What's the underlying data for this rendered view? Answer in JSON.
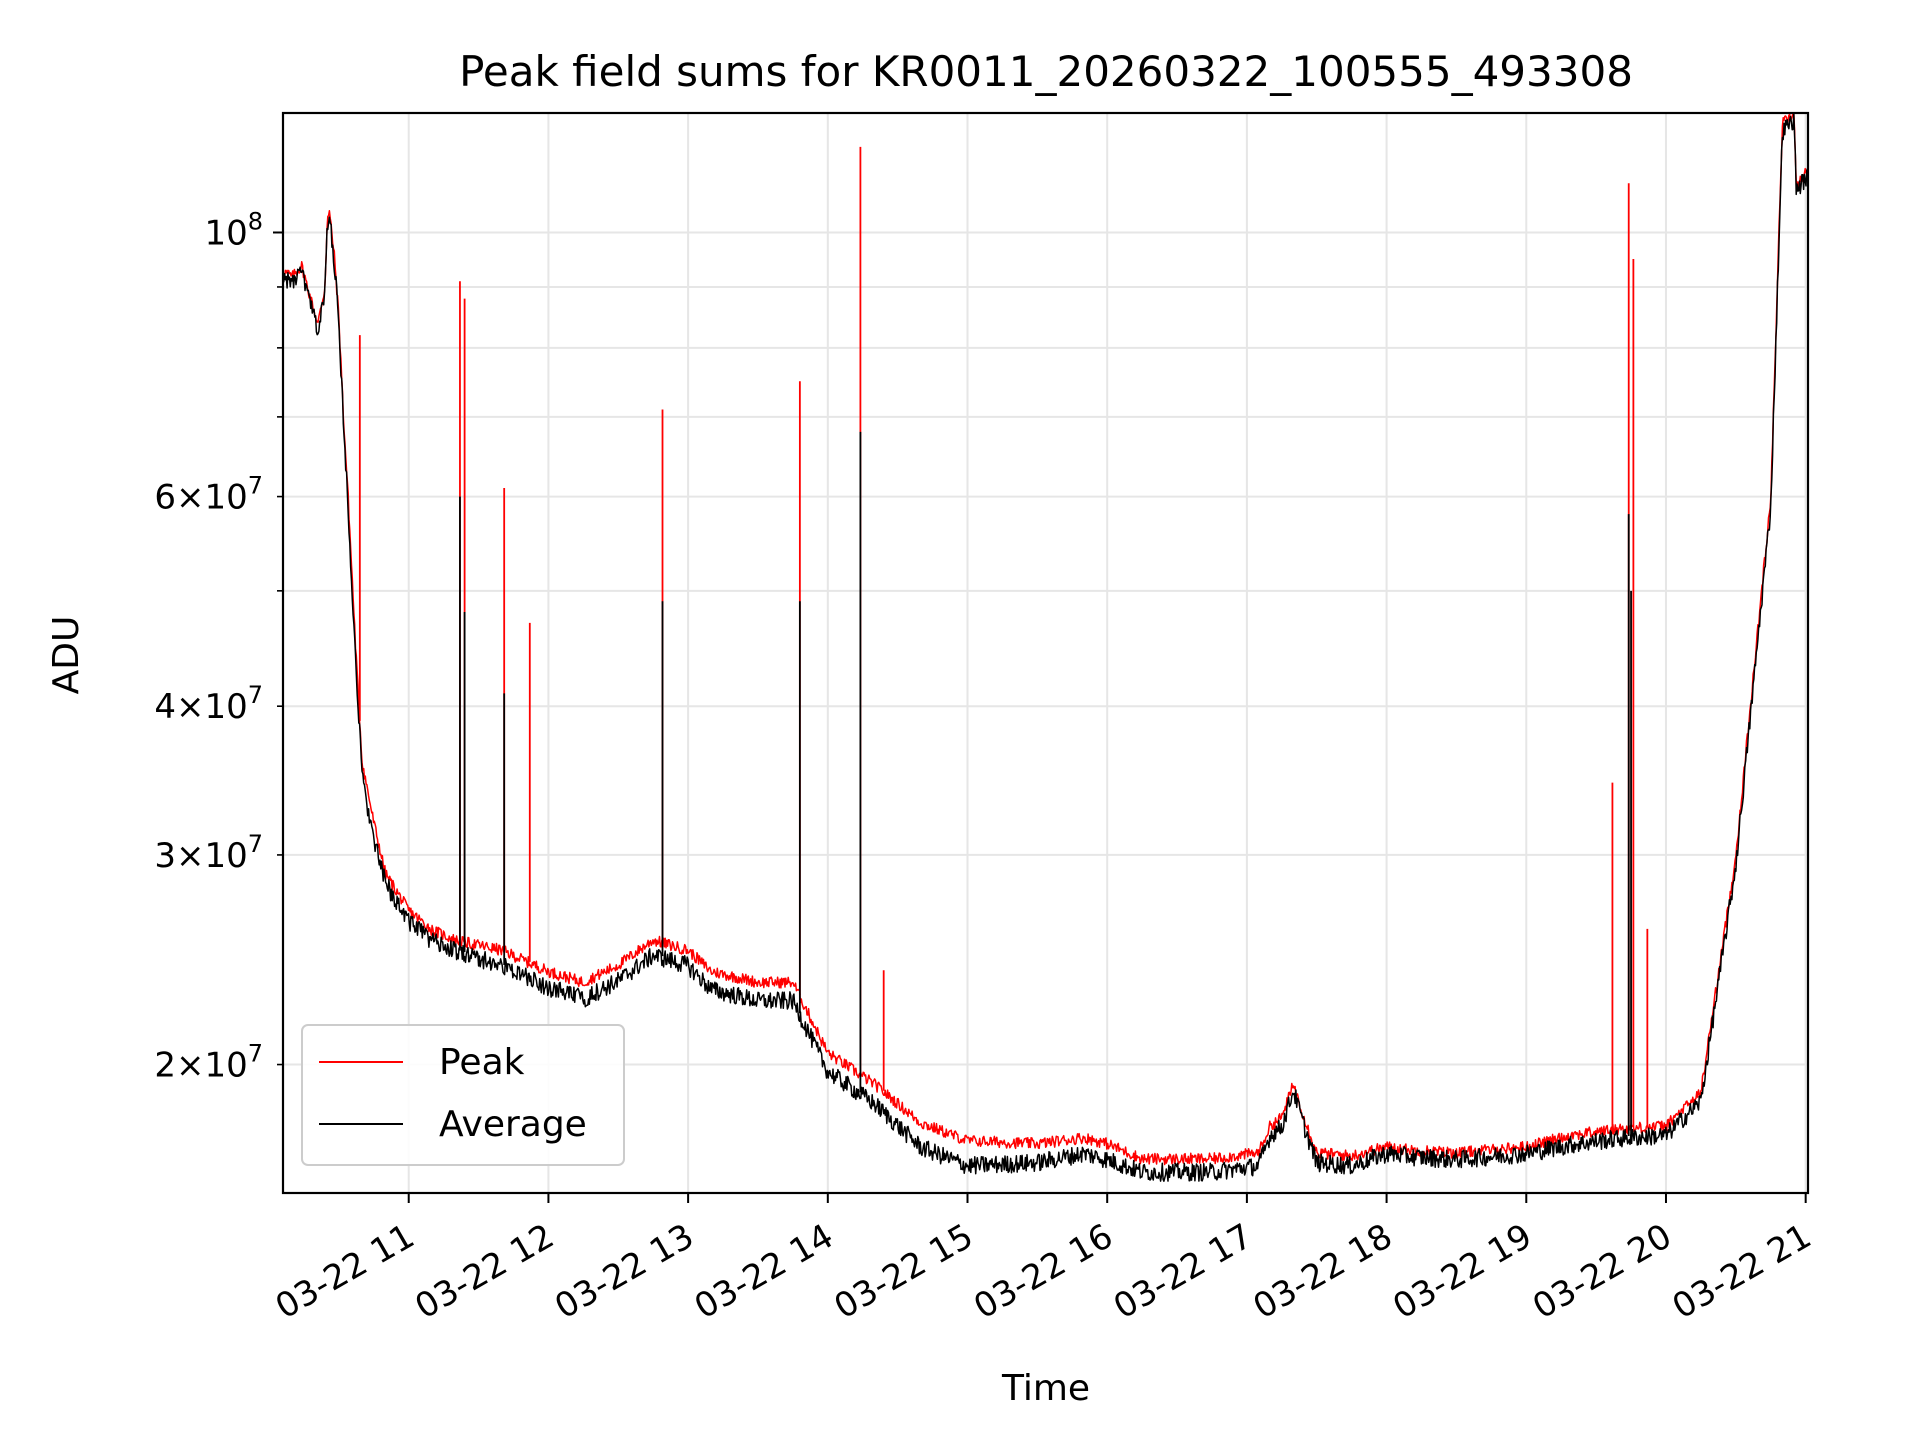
{
  "chart_data": {
    "type": "line",
    "title": "Peak field sums for KR0011_20260322_100555_493308",
    "xlabel": "Time",
    "ylabel": "ADU",
    "yscale": "log",
    "xlim": [
      "2026-03-22 10:06",
      "2026-03-22 21:01"
    ],
    "ylim": [
      15600000,
      126000000
    ],
    "grid": true,
    "legend_position": "lower-left",
    "x_ticks": [
      {
        "t": "2026-03-22 11:00",
        "label": "03-22 11"
      },
      {
        "t": "2026-03-22 12:00",
        "label": "03-22 12"
      },
      {
        "t": "2026-03-22 13:00",
        "label": "03-22 13"
      },
      {
        "t": "2026-03-22 14:00",
        "label": "03-22 14"
      },
      {
        "t": "2026-03-22 15:00",
        "label": "03-22 15"
      },
      {
        "t": "2026-03-22 16:00",
        "label": "03-22 16"
      },
      {
        "t": "2026-03-22 17:00",
        "label": "03-22 17"
      },
      {
        "t": "2026-03-22 18:00",
        "label": "03-22 18"
      },
      {
        "t": "2026-03-22 19:00",
        "label": "03-22 19"
      },
      {
        "t": "2026-03-22 20:00",
        "label": "03-22 20"
      },
      {
        "t": "2026-03-22 21:00",
        "label": "03-22 21"
      }
    ],
    "y_major_ticks": [
      {
        "value": 100000000,
        "mant": "",
        "exp": "8"
      }
    ],
    "y_minor_ticks": [
      {
        "value": 20000000,
        "mant": "2",
        "exp": "7"
      },
      {
        "value": 30000000,
        "mant": "3",
        "exp": "7"
      },
      {
        "value": 40000000,
        "mant": "4",
        "exp": "7"
      },
      {
        "value": 60000000,
        "mant": "6",
        "exp": "7"
      }
    ],
    "y_minor_unlabeled": [
      50000000,
      70000000,
      80000000,
      90000000
    ],
    "series": [
      {
        "name": "Peak",
        "color": "#ff0000",
        "points": [
          [
            "2026-03-22 10:06",
            93000000
          ],
          [
            "2026-03-22 10:10",
            92000000
          ],
          [
            "2026-03-22 10:14",
            94000000
          ],
          [
            "2026-03-22 10:18",
            88000000
          ],
          [
            "2026-03-22 10:21",
            84000000
          ],
          [
            "2026-03-22 10:24",
            90000000
          ],
          [
            "2026-03-22 10:25",
            103000000
          ],
          [
            "2026-03-22 10:26",
            104000000
          ],
          [
            "2026-03-22 10:28",
            96000000
          ],
          [
            "2026-03-22 10:30",
            85000000
          ],
          [
            "2026-03-22 10:32",
            70000000
          ],
          [
            "2026-03-22 10:34",
            60000000
          ],
          [
            "2026-03-22 10:36",
            50000000
          ],
          [
            "2026-03-22 10:38",
            42000000
          ],
          [
            "2026-03-22 10:40",
            36000000
          ],
          [
            "2026-03-22 10:45",
            32000000
          ],
          [
            "2026-03-22 10:50",
            29000000
          ],
          [
            "2026-03-22 11:00",
            27000000
          ],
          [
            "2026-03-22 11:10",
            26000000
          ],
          [
            "2026-03-22 11:20",
            25500000
          ],
          [
            "2026-03-22 11:40",
            25000000
          ],
          [
            "2026-03-22 12:00",
            24000000
          ],
          [
            "2026-03-22 12:15",
            23500000
          ],
          [
            "2026-03-22 12:30",
            24300000
          ],
          [
            "2026-03-22 12:45",
            25500000
          ],
          [
            "2026-03-22 13:00",
            25000000
          ],
          [
            "2026-03-22 13:10",
            24000000
          ],
          [
            "2026-03-22 13:30",
            23500000
          ],
          [
            "2026-03-22 13:45",
            23500000
          ],
          [
            "2026-03-22 14:00",
            20500000
          ],
          [
            "2026-03-22 14:20",
            19300000
          ],
          [
            "2026-03-22 14:40",
            17900000
          ],
          [
            "2026-03-22 15:00",
            17300000
          ],
          [
            "2026-03-22 15:30",
            17200000
          ],
          [
            "2026-03-22 15:50",
            17400000
          ],
          [
            "2026-03-22 16:00",
            17200000
          ],
          [
            "2026-03-22 16:15",
            16700000
          ],
          [
            "2026-03-22 16:45",
            16700000
          ],
          [
            "2026-03-22 17:05",
            16900000
          ],
          [
            "2026-03-22 17:10",
            17800000
          ],
          [
            "2026-03-22 17:15",
            18100000
          ],
          [
            "2026-03-22 17:20",
            19300000
          ],
          [
            "2026-03-22 17:25",
            18000000
          ],
          [
            "2026-03-22 17:30",
            16900000
          ],
          [
            "2026-03-22 17:45",
            16800000
          ],
          [
            "2026-03-22 18:00",
            17100000
          ],
          [
            "2026-03-22 18:10",
            17000000
          ],
          [
            "2026-03-22 18:30",
            16900000
          ],
          [
            "2026-03-22 19:00",
            17100000
          ],
          [
            "2026-03-22 19:20",
            17500000
          ],
          [
            "2026-03-22 19:40",
            17700000
          ],
          [
            "2026-03-22 20:00",
            17800000
          ],
          [
            "2026-03-22 20:15",
            19000000
          ],
          [
            "2026-03-22 20:30",
            30000000
          ],
          [
            "2026-03-22 20:45",
            60000000
          ],
          [
            "2026-03-22 20:50",
            124000000
          ],
          [
            "2026-03-22 20:55",
            126000000
          ],
          [
            "2026-03-22 20:56",
            110000000
          ],
          [
            "2026-03-22 21:01",
            113000000
          ]
        ],
        "spikes": [
          [
            "2026-03-22 10:39",
            82000000
          ],
          [
            "2026-03-22 11:22",
            91000000
          ],
          [
            "2026-03-22 11:24",
            88000000
          ],
          [
            "2026-03-22 11:41",
            61000000
          ],
          [
            "2026-03-22 11:52",
            47000000
          ],
          [
            "2026-03-22 12:49",
            71000000
          ],
          [
            "2026-03-22 13:48",
            75000000
          ],
          [
            "2026-03-22 14:14",
            118000000
          ],
          [
            "2026-03-22 14:24",
            24000000
          ],
          [
            "2026-03-22 19:37",
            34500000
          ],
          [
            "2026-03-22 19:44",
            110000000
          ],
          [
            "2026-03-22 19:46",
            95000000
          ],
          [
            "2026-03-22 19:52",
            26000000
          ]
        ]
      },
      {
        "name": "Average",
        "color": "#000000",
        "points": [
          [
            "2026-03-22 10:06",
            92000000
          ],
          [
            "2026-03-22 10:10",
            91000000
          ],
          [
            "2026-03-22 10:14",
            93000000
          ],
          [
            "2026-03-22 10:18",
            87000000
          ],
          [
            "2026-03-22 10:21",
            83000000
          ],
          [
            "2026-03-22 10:24",
            89000000
          ],
          [
            "2026-03-22 10:25",
            102000000
          ],
          [
            "2026-03-22 10:26",
            103000000
          ],
          [
            "2026-03-22 10:28",
            95000000
          ],
          [
            "2026-03-22 10:30",
            84000000
          ],
          [
            "2026-03-22 10:32",
            69000000
          ],
          [
            "2026-03-22 10:34",
            59000000
          ],
          [
            "2026-03-22 10:36",
            49000000
          ],
          [
            "2026-03-22 10:38",
            41000000
          ],
          [
            "2026-03-22 10:40",
            35000000
          ],
          [
            "2026-03-22 10:45",
            31000000
          ],
          [
            "2026-03-22 10:50",
            28500000
          ],
          [
            "2026-03-22 11:00",
            26500000
          ],
          [
            "2026-03-22 11:10",
            25500000
          ],
          [
            "2026-03-22 11:20",
            25000000
          ],
          [
            "2026-03-22 11:40",
            24300000
          ],
          [
            "2026-03-22 12:00",
            23300000
          ],
          [
            "2026-03-22 12:15",
            22800000
          ],
          [
            "2026-03-22 12:30",
            23600000
          ],
          [
            "2026-03-22 12:45",
            24800000
          ],
          [
            "2026-03-22 13:00",
            24300000
          ],
          [
            "2026-03-22 13:10",
            23200000
          ],
          [
            "2026-03-22 13:30",
            22700000
          ],
          [
            "2026-03-22 13:45",
            22700000
          ],
          [
            "2026-03-22 14:00",
            19800000
          ],
          [
            "2026-03-22 14:20",
            18600000
          ],
          [
            "2026-03-22 14:40",
            17100000
          ],
          [
            "2026-03-22 15:00",
            16500000
          ],
          [
            "2026-03-22 15:30",
            16600000
          ],
          [
            "2026-03-22 15:50",
            16900000
          ],
          [
            "2026-03-22 16:00",
            16700000
          ],
          [
            "2026-03-22 16:15",
            16300000
          ],
          [
            "2026-03-22 16:45",
            16300000
          ],
          [
            "2026-03-22 17:05",
            16500000
          ],
          [
            "2026-03-22 17:10",
            17500000
          ],
          [
            "2026-03-22 17:15",
            17800000
          ],
          [
            "2026-03-22 17:20",
            19100000
          ],
          [
            "2026-03-22 17:25",
            17700000
          ],
          [
            "2026-03-22 17:30",
            16600000
          ],
          [
            "2026-03-22 17:45",
            16500000
          ],
          [
            "2026-03-22 18:00",
            16900000
          ],
          [
            "2026-03-22 18:10",
            16800000
          ],
          [
            "2026-03-22 18:30",
            16700000
          ],
          [
            "2026-03-22 19:00",
            16900000
          ],
          [
            "2026-03-22 19:20",
            17200000
          ],
          [
            "2026-03-22 19:40",
            17400000
          ],
          [
            "2026-03-22 20:00",
            17500000
          ],
          [
            "2026-03-22 20:15",
            18700000
          ],
          [
            "2026-03-22 20:30",
            29500000
          ],
          [
            "2026-03-22 20:45",
            59000000
          ],
          [
            "2026-03-22 20:50",
            122000000
          ],
          [
            "2026-03-22 20:55",
            125000000
          ],
          [
            "2026-03-22 20:56",
            109000000
          ],
          [
            "2026-03-22 21:01",
            112000000
          ]
        ],
        "spikes": [
          [
            "2026-03-22 11:22",
            60000000
          ],
          [
            "2026-03-22 11:24",
            48000000
          ],
          [
            "2026-03-22 11:41",
            41000000
          ],
          [
            "2026-03-22 12:49",
            49000000
          ],
          [
            "2026-03-22 13:48",
            49000000
          ],
          [
            "2026-03-22 14:14",
            68000000
          ],
          [
            "2026-03-22 19:44",
            58000000
          ],
          [
            "2026-03-22 19:45",
            50000000
          ]
        ]
      }
    ]
  }
}
